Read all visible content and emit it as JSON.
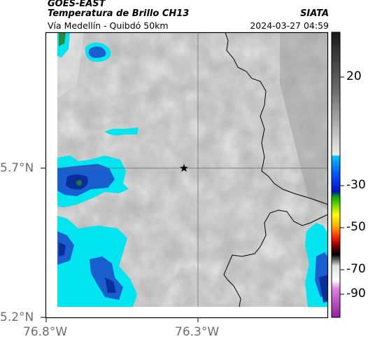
{
  "header": {
    "satellite": "GOES-EAST",
    "product": "Temperatura de Brillo CH13",
    "region": "Vía Medellín - Quibdó 50km",
    "agency": "SIATA",
    "timestamp": "2024-03-27 04:59"
  },
  "axes": {
    "y_ticks": [
      "5.7°N",
      "5.2°N"
    ],
    "x_ticks": [
      "76.8°W",
      "76.3°W"
    ]
  },
  "colorbar": {
    "ticks": [
      "20",
      "-30",
      "-50",
      "-70",
      "-90"
    ]
  },
  "colors": {
    "cloud_cyan": "#00e5f0",
    "cloud_blue": "#1a5fd0",
    "cloud_deep": "#0a2f9a",
    "background_gray": "#b4b4b4"
  },
  "marker": {
    "icon": "star-icon"
  }
}
